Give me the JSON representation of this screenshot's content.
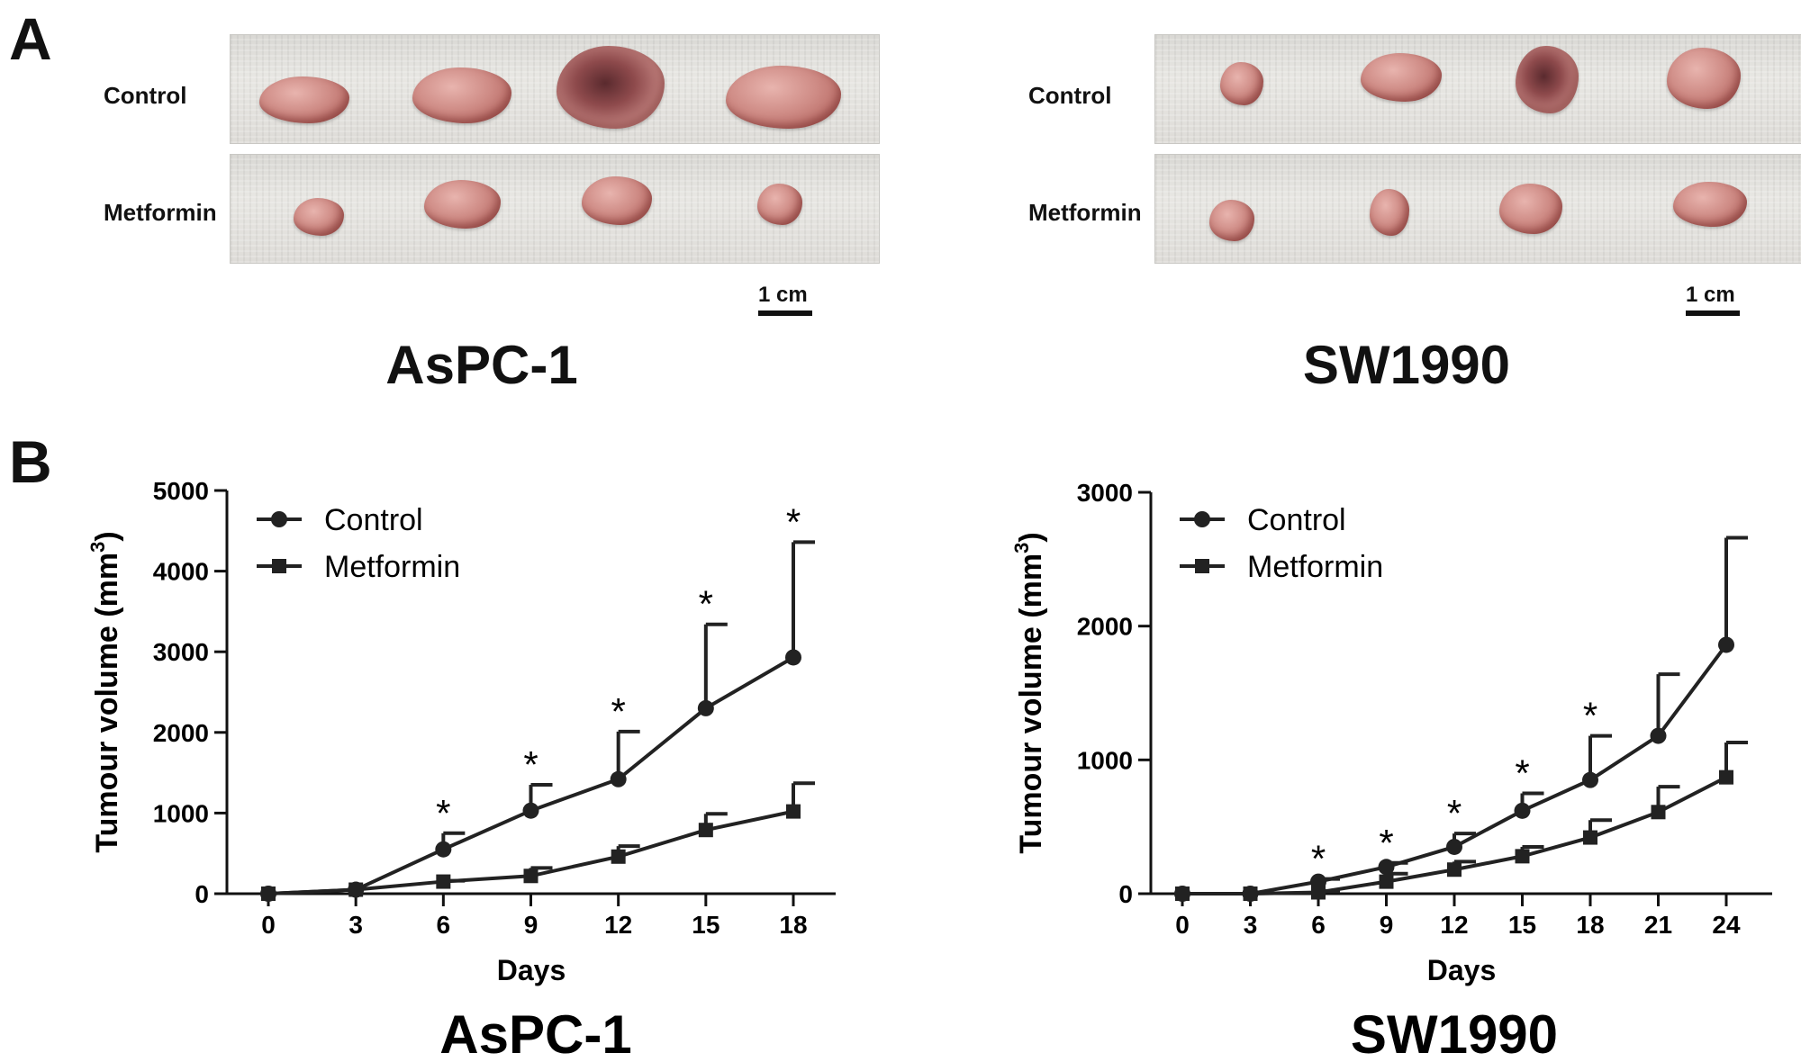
{
  "panels": {
    "a_label": "A",
    "b_label": "B"
  },
  "photos": [
    {
      "rows": [
        "Control",
        "Metformin"
      ],
      "scale_label": "1 cm",
      "title": "AsPC-1"
    },
    {
      "rows": [
        "Control",
        "Metformin"
      ],
      "scale_label": "1 cm",
      "title": "SW1990"
    }
  ],
  "chart_data": [
    {
      "type": "line",
      "title": "AsPC-1",
      "xlabel": "Days",
      "ylabel": "Tumour volume (mm",
      "ylabel_superscript": "3",
      "ylabel_close": ")",
      "x": [
        0,
        3,
        6,
        9,
        12,
        15,
        18
      ],
      "xlim": [
        0,
        18
      ],
      "ylim": [
        0,
        5000
      ],
      "yticks": [
        0,
        1000,
        2000,
        3000,
        4000,
        5000
      ],
      "legend_position": "top-left",
      "significance_marker": "*",
      "significant_x": [
        6,
        9,
        12,
        15,
        18
      ],
      "series": [
        {
          "name": "Control",
          "marker": "circle",
          "values": [
            0,
            50,
            550,
            1030,
            1420,
            2300,
            2930
          ],
          "error_upper": [
            0,
            30,
            750,
            1350,
            2010,
            3340,
            4360
          ]
        },
        {
          "name": "Metformin",
          "marker": "square",
          "values": [
            0,
            50,
            150,
            220,
            460,
            790,
            1020
          ],
          "error_upper": [
            0,
            30,
            160,
            320,
            590,
            990,
            1370
          ]
        }
      ]
    },
    {
      "type": "line",
      "title": "SW1990",
      "xlabel": "Days",
      "ylabel": "Tumour volume (mm",
      "ylabel_superscript": "3",
      "ylabel_close": ")",
      "x": [
        0,
        3,
        6,
        9,
        12,
        15,
        18,
        21,
        24
      ],
      "xlim": [
        0,
        24
      ],
      "ylim": [
        0,
        3000
      ],
      "yticks": [
        0,
        1000,
        2000,
        3000
      ],
      "legend_position": "top-left",
      "significance_marker": "*",
      "significant_x": [
        6,
        9,
        12,
        15,
        18
      ],
      "series": [
        {
          "name": "Control",
          "marker": "circle",
          "values": [
            0,
            0,
            90,
            200,
            350,
            620,
            850,
            1180,
            1860
          ],
          "error_upper": [
            0,
            0,
            110,
            230,
            450,
            750,
            1180,
            1640,
            2660
          ]
        },
        {
          "name": "Metformin",
          "marker": "square",
          "values": [
            0,
            0,
            10,
            90,
            180,
            280,
            420,
            610,
            870
          ],
          "error_upper": [
            0,
            0,
            20,
            150,
            240,
            350,
            550,
            800,
            1130
          ]
        }
      ]
    }
  ]
}
